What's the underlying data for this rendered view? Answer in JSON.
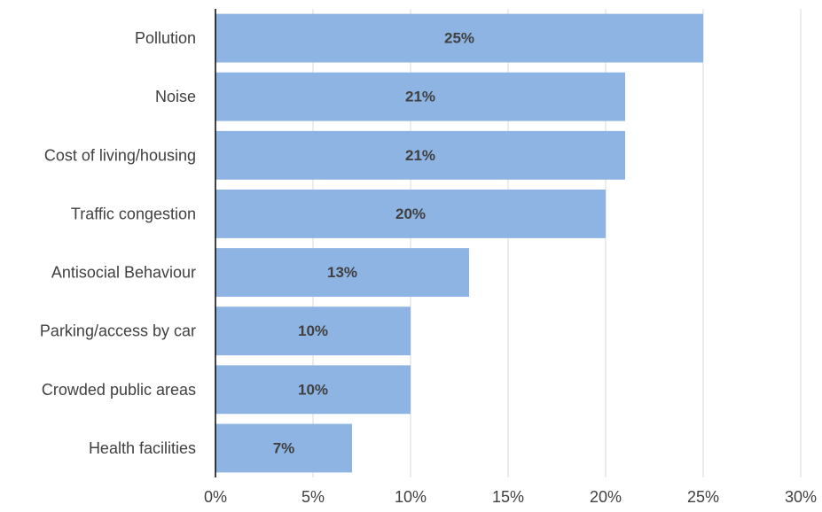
{
  "chart_data": {
    "type": "bar",
    "orientation": "horizontal",
    "categories": [
      "Pollution",
      "Noise",
      "Cost of living/housing",
      "Traffic congestion",
      "Antisocial Behaviour",
      "Parking/access by car",
      "Crowded public areas",
      "Health facilities"
    ],
    "values": [
      25,
      21,
      21,
      20,
      13,
      10,
      10,
      7
    ],
    "value_labels": [
      "25%",
      "21%",
      "21%",
      "20%",
      "13%",
      "10%",
      "10%",
      "7%"
    ],
    "xlim": [
      0,
      30
    ],
    "x_ticks": [
      0,
      5,
      10,
      15,
      20,
      25,
      30
    ],
    "x_tick_labels": [
      "0%",
      "5%",
      "10%",
      "15%",
      "20%",
      "25%",
      "30%"
    ],
    "grid": "vertical",
    "legend": "none",
    "title": "",
    "xlabel": "",
    "ylabel": "",
    "colors": {
      "bar": "#8eb4e3",
      "text": "#404040",
      "grid": "#d9d9d9",
      "axis": "#000000"
    }
  }
}
